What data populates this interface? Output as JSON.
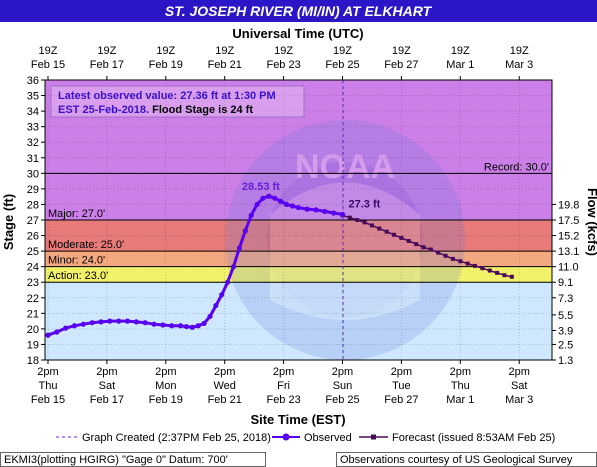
{
  "header": {
    "title": "ST. JOSEPH RIVER (MI/IN) AT ELKHART",
    "bg": "#2b16c7"
  },
  "top_axis": {
    "title": "Universal Time (UTC)",
    "ticks": [
      {
        "t": "19Z",
        "d": "Feb 15"
      },
      {
        "t": "19Z",
        "d": "Feb 17"
      },
      {
        "t": "19Z",
        "d": "Feb 19"
      },
      {
        "t": "19Z",
        "d": "Feb 21"
      },
      {
        "t": "19Z",
        "d": "Feb 23"
      },
      {
        "t": "19Z",
        "d": "Feb 25"
      },
      {
        "t": "19Z",
        "d": "Feb 27"
      },
      {
        "t": "19Z",
        "d": "Mar 1"
      },
      {
        "t": "19Z",
        "d": "Mar 3"
      }
    ]
  },
  "info_box": {
    "line1": "Latest observed value: 27.36 ft at 1:30 PM",
    "line2a": "EST 25-Feb-2018.",
    "line2b": " Flood Stage is 24 ft"
  },
  "footer": {
    "left": "EKMI3(plotting HGIRG) \"Gage 0\" Datum: 700'",
    "right": "Observations courtesy of US Geological Survey"
  },
  "colors": {
    "observed": "#5a00f0",
    "forecast": "#4a0a5a",
    "record_zone": "#cc7fe8",
    "major_zone": "#e87a7a",
    "moderate_zone": "#f4a880",
    "minor_zone": "#f8d070",
    "action_zone": "#f2f26a",
    "normal_zone": "#cfe8ff"
  },
  "chart_data": {
    "type": "line",
    "title": "ST. JOSEPH RIVER (MI/IN) AT ELKHART",
    "xlabel": "Site Time (EST)",
    "ylabel": "Stage (ft)",
    "y2label": "Flow (kcfs)",
    "ylim": [
      18,
      36
    ],
    "x_ticks": [
      {
        "t": "2pm",
        "d": "Thu",
        "e": "Feb 15"
      },
      {
        "t": "2pm",
        "d": "Sat",
        "e": "Feb 17"
      },
      {
        "t": "2pm",
        "d": "Mon",
        "e": "Feb 19"
      },
      {
        "t": "2pm",
        "d": "Wed",
        "e": "Feb 21"
      },
      {
        "t": "2pm",
        "d": "Fri",
        "e": "Feb 23"
      },
      {
        "t": "2pm",
        "d": "Sun",
        "e": "Feb 25"
      },
      {
        "t": "2pm",
        "d": "Tue",
        "e": "Feb 27"
      },
      {
        "t": "2pm",
        "d": "Thu",
        "e": "Mar 1"
      },
      {
        "t": "2pm",
        "d": "Sat",
        "e": "Mar 3"
      }
    ],
    "y_ticks": [
      18,
      19,
      20,
      21,
      22,
      23,
      24,
      25,
      26,
      27,
      28,
      29,
      30,
      31,
      32,
      33,
      34,
      35,
      36
    ],
    "flow_ticks": [
      {
        "stage": 18.0,
        "label": "1.3"
      },
      {
        "stage": 19.0,
        "label": "2.5"
      },
      {
        "stage": 19.9,
        "label": "3.9"
      },
      {
        "stage": 20.9,
        "label": "5.5"
      },
      {
        "stage": 22.0,
        "label": "7.3"
      },
      {
        "stage": 23.0,
        "label": "9.1"
      },
      {
        "stage": 24.0,
        "label": "11.0"
      },
      {
        "stage": 25.0,
        "label": "13.1"
      },
      {
        "stage": 26.0,
        "label": "15.2"
      },
      {
        "stage": 27.0,
        "label": "17.5"
      },
      {
        "stage": 28.0,
        "label": "19.8"
      }
    ],
    "thresholds": [
      {
        "name": "Record",
        "label": "Record:  30.0'",
        "value": 30.0
      },
      {
        "name": "Major",
        "label": "Major:  27.0'",
        "value": 27.0
      },
      {
        "name": "Moderate",
        "label": "Moderate:  25.0'",
        "value": 25.0
      },
      {
        "name": "Minor",
        "label": "Minor:  24.0'",
        "value": 24.0
      },
      {
        "name": "Action",
        "label": "Action:  23.0'",
        "value": 23.0
      }
    ],
    "graph_created_day": 10.02,
    "series": [
      {
        "name": "Observed",
        "points": [
          [
            0.0,
            19.6
          ],
          [
            0.3,
            19.8
          ],
          [
            0.6,
            20.05
          ],
          [
            0.9,
            20.2
          ],
          [
            1.2,
            20.3
          ],
          [
            1.5,
            20.4
          ],
          [
            1.8,
            20.45
          ],
          [
            2.1,
            20.5
          ],
          [
            2.4,
            20.5
          ],
          [
            2.7,
            20.5
          ],
          [
            3.0,
            20.45
          ],
          [
            3.3,
            20.4
          ],
          [
            3.6,
            20.3
          ],
          [
            3.9,
            20.25
          ],
          [
            4.2,
            20.2
          ],
          [
            4.5,
            20.2
          ],
          [
            4.7,
            20.15
          ],
          [
            4.9,
            20.1
          ],
          [
            5.1,
            20.2
          ],
          [
            5.3,
            20.35
          ],
          [
            5.5,
            20.8
          ],
          [
            5.7,
            21.5
          ],
          [
            5.9,
            22.2
          ],
          [
            6.1,
            23.0
          ],
          [
            6.3,
            24.0
          ],
          [
            6.5,
            25.2
          ],
          [
            6.7,
            26.3
          ],
          [
            6.9,
            27.3
          ],
          [
            7.1,
            28.0
          ],
          [
            7.3,
            28.4
          ],
          [
            7.5,
            28.53
          ],
          [
            7.7,
            28.4
          ],
          [
            7.9,
            28.2
          ],
          [
            8.1,
            28.0
          ],
          [
            8.3,
            27.9
          ],
          [
            8.5,
            27.8
          ],
          [
            8.8,
            27.7
          ],
          [
            9.1,
            27.65
          ],
          [
            9.4,
            27.55
          ],
          [
            9.7,
            27.45
          ],
          [
            10.0,
            27.36
          ]
        ]
      },
      {
        "name": "Forecast",
        "points": [
          [
            10.0,
            27.3
          ],
          [
            10.25,
            27.15
          ],
          [
            10.5,
            27.0
          ],
          [
            10.75,
            26.85
          ],
          [
            11.0,
            26.65
          ],
          [
            11.25,
            26.45
          ],
          [
            11.5,
            26.25
          ],
          [
            11.75,
            26.05
          ],
          [
            12.0,
            25.85
          ],
          [
            12.25,
            25.65
          ],
          [
            12.5,
            25.45
          ],
          [
            12.75,
            25.25
          ],
          [
            13.0,
            25.1
          ],
          [
            13.25,
            24.9
          ],
          [
            13.5,
            24.7
          ],
          [
            13.75,
            24.5
          ],
          [
            14.0,
            24.35
          ],
          [
            14.25,
            24.2
          ],
          [
            14.5,
            24.05
          ],
          [
            14.75,
            23.9
          ],
          [
            15.0,
            23.75
          ],
          [
            15.25,
            23.6
          ],
          [
            15.5,
            23.45
          ],
          [
            15.75,
            23.35
          ]
        ]
      }
    ],
    "annotations": [
      {
        "day": 7.5,
        "value": 28.53,
        "label": "28.53 ft",
        "series": "Observed"
      },
      {
        "day": 10.0,
        "value": 27.3,
        "label": "27.3 ft",
        "series": "Forecast"
      }
    ],
    "legend": {
      "graph_created": "Graph Created (2:37PM Feb 25, 2018)",
      "observed": "Observed",
      "forecast": "Forecast (issued 8:53AM Feb 25)"
    }
  }
}
